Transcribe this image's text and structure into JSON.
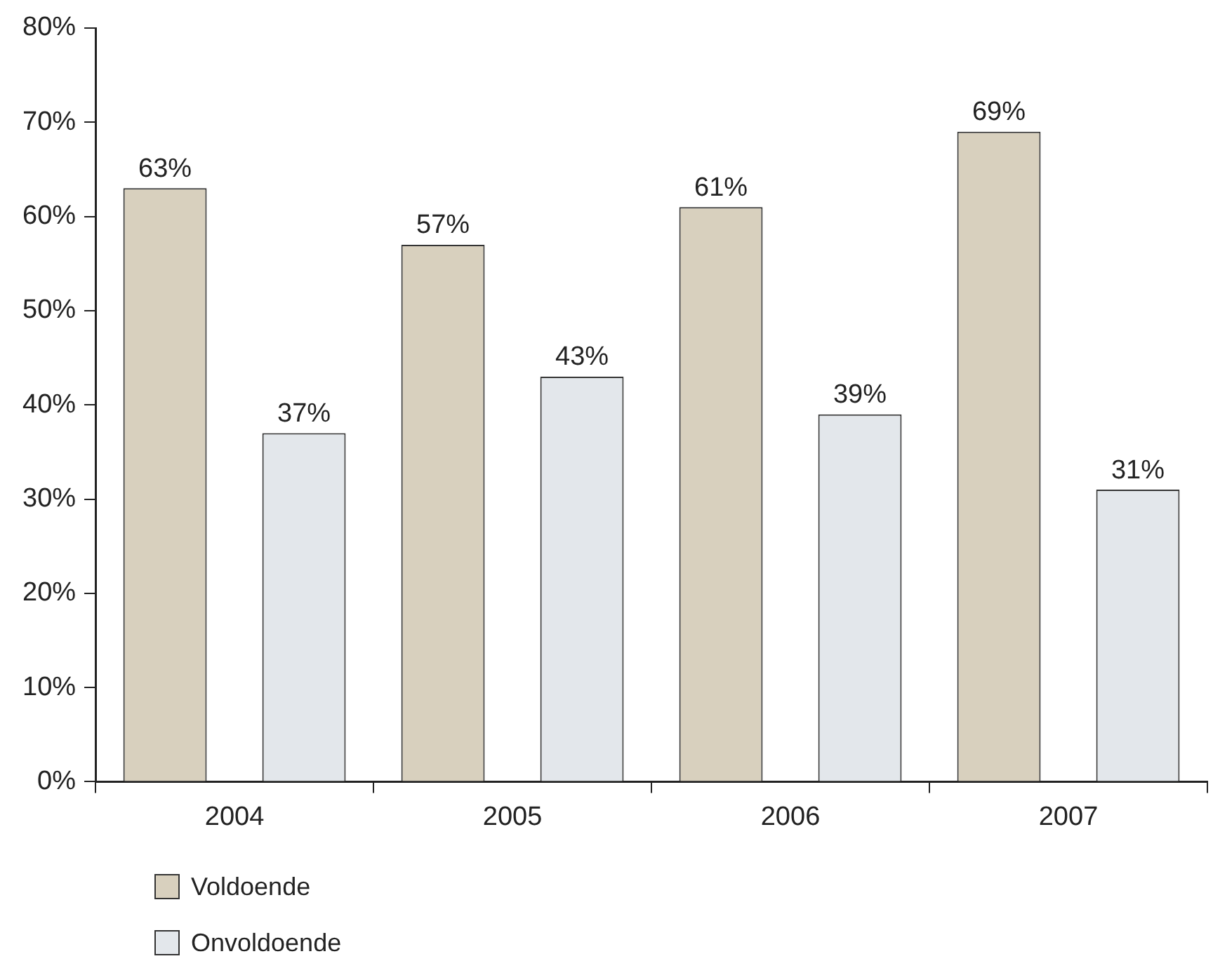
{
  "chart_data": {
    "type": "bar",
    "categories": [
      "2004",
      "2005",
      "2006",
      "2007"
    ],
    "series": [
      {
        "name": "Voldoende",
        "color": "#d8d0be",
        "values": [
          63,
          57,
          61,
          69
        ],
        "value_labels": [
          "63%",
          "57%",
          "61%",
          "69%"
        ]
      },
      {
        "name": "Onvoldoende",
        "color": "#e3e7eb",
        "values": [
          37,
          43,
          39,
          31
        ],
        "value_labels": [
          "37%",
          "43%",
          "39%",
          "31%"
        ]
      }
    ],
    "ylim": [
      0,
      80
    ],
    "yticks": [
      {
        "value": 0,
        "label": "0%"
      },
      {
        "value": 10,
        "label": "10%"
      },
      {
        "value": 20,
        "label": "20%"
      },
      {
        "value": 30,
        "label": "30%"
      },
      {
        "value": 40,
        "label": "40%"
      },
      {
        "value": 50,
        "label": "50%"
      },
      {
        "value": 60,
        "label": "60%"
      },
      {
        "value": 70,
        "label": "70%"
      },
      {
        "value": 80,
        "label": "80%"
      }
    ],
    "grid": false,
    "legend": "bottom left"
  }
}
